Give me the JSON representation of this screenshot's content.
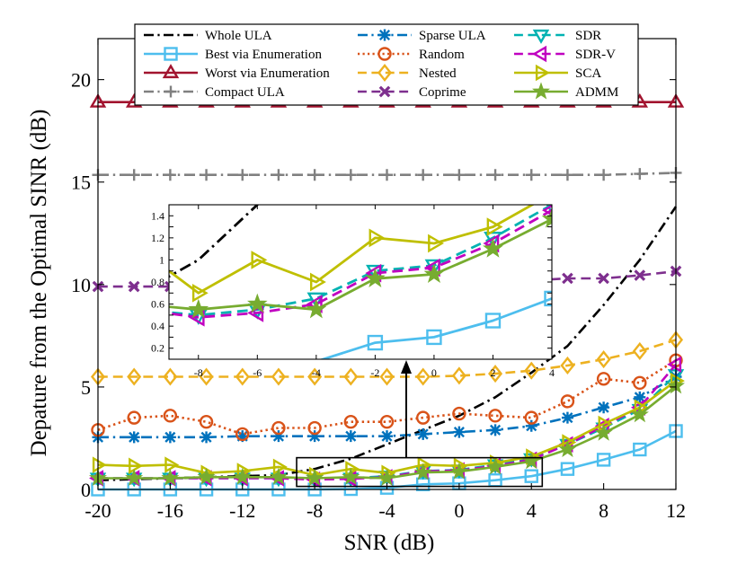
{
  "chart_data": {
    "type": "line",
    "xlabel": "SNR (dB)",
    "ylabel": "Depature from the Optimal SINR (dB)",
    "x": [
      -20,
      -18,
      -16,
      -14,
      -12,
      -10,
      -8,
      -6,
      -4,
      -2,
      0,
      2,
      4,
      6,
      8,
      10,
      12
    ],
    "xlim": [
      -20,
      12
    ],
    "ylim": [
      0,
      22
    ],
    "xticks": [
      -20,
      -16,
      -12,
      -8,
      -4,
      0,
      4,
      8,
      12
    ],
    "yticks": [
      0,
      5,
      10,
      15,
      20
    ],
    "grid": false,
    "legend_position": "top",
    "series": [
      {
        "name": "Whole ULA",
        "color": "#000000",
        "dash": "dashdot",
        "marker": "none",
        "values": [
          0.45,
          0.5,
          0.55,
          0.6,
          0.65,
          0.7,
          1.0,
          1.5,
          2.2,
          2.9,
          3.6,
          4.5,
          5.7,
          7.0,
          9.0,
          11.2,
          13.8
        ]
      },
      {
        "name": "Best via Enumeration",
        "color": "#4DBEEE",
        "dash": "solid",
        "marker": "square",
        "values": [
          0.0,
          0.0,
          0.0,
          0.0,
          0.0,
          0.0,
          0.0,
          0.02,
          0.08,
          0.25,
          0.3,
          0.45,
          0.65,
          1.0,
          1.45,
          1.95,
          2.85
        ]
      },
      {
        "name": "Worst via Enumeration",
        "color": "#A2142F",
        "dash": "solid",
        "marker": "triangle-up",
        "values": [
          18.9,
          18.9,
          18.9,
          18.9,
          18.9,
          18.9,
          18.9,
          18.9,
          18.9,
          18.9,
          18.9,
          18.9,
          18.9,
          18.9,
          18.9,
          18.9,
          18.9
        ]
      },
      {
        "name": "Compact ULA",
        "color": "#808080",
        "dash": "dashdot",
        "marker": "plus",
        "values": [
          15.35,
          15.35,
          15.35,
          15.35,
          15.35,
          15.35,
          15.35,
          15.35,
          15.35,
          15.35,
          15.35,
          15.35,
          15.35,
          15.35,
          15.35,
          15.4,
          15.45
        ]
      },
      {
        "name": "Sparse ULA",
        "color": "#0072BD",
        "dash": "dashdot",
        "marker": "asterisk",
        "values": [
          2.55,
          2.55,
          2.55,
          2.55,
          2.6,
          2.6,
          2.6,
          2.6,
          2.6,
          2.7,
          2.8,
          2.9,
          3.1,
          3.5,
          4.0,
          4.5,
          5.5
        ]
      },
      {
        "name": "Random",
        "color": "#D95319",
        "dash": "dotted",
        "marker": "circle",
        "values": [
          2.9,
          3.5,
          3.6,
          3.3,
          2.7,
          3.0,
          3.0,
          3.3,
          3.3,
          3.5,
          3.7,
          3.6,
          3.5,
          4.3,
          5.4,
          5.2,
          6.3
        ]
      },
      {
        "name": "Nested",
        "color": "#EDB120",
        "dash": "dashed",
        "marker": "diamond",
        "values": [
          5.5,
          5.5,
          5.5,
          5.5,
          5.5,
          5.5,
          5.5,
          5.5,
          5.5,
          5.5,
          5.55,
          5.65,
          5.8,
          6.05,
          6.35,
          6.75,
          7.3
        ]
      },
      {
        "name": "Coprime",
        "color": "#7E2F8E",
        "dash": "dashed",
        "marker": "x",
        "values": [
          9.9,
          9.9,
          9.9,
          9.95,
          9.95,
          9.95,
          10.0,
          10.0,
          10.0,
          10.05,
          10.05,
          10.1,
          10.2,
          10.3,
          10.3,
          10.45,
          10.65
        ]
      },
      {
        "name": "SDR",
        "color": "#00B2B2",
        "dash": "dashed",
        "marker": "triangle-down",
        "values": [
          0.55,
          0.55,
          0.55,
          0.55,
          0.55,
          0.55,
          0.5,
          0.55,
          0.65,
          0.9,
          0.95,
          1.2,
          1.5,
          2.2,
          3.0,
          3.9,
          5.6
        ]
      },
      {
        "name": "SDR-V",
        "color": "#C000C0",
        "dash": "dashed",
        "marker": "triangle-left",
        "values": [
          0.55,
          0.55,
          0.55,
          0.55,
          0.55,
          0.55,
          0.48,
          0.52,
          0.6,
          0.88,
          0.93,
          1.15,
          1.45,
          2.2,
          3.1,
          4.0,
          6.1
        ]
      },
      {
        "name": "SCA",
        "color": "#BFBF00",
        "dash": "solid",
        "marker": "triangle-right",
        "values": [
          1.2,
          1.15,
          1.2,
          0.8,
          0.9,
          1.1,
          0.7,
          1.0,
          0.8,
          1.2,
          1.15,
          1.3,
          1.6,
          2.3,
          3.2,
          4.0,
          5.3
        ]
      },
      {
        "name": "ADMM",
        "color": "#77AC30",
        "dash": "solid",
        "marker": "pentagram",
        "values": [
          0.55,
          0.55,
          0.55,
          0.6,
          0.6,
          0.6,
          0.55,
          0.6,
          0.55,
          0.83,
          0.87,
          1.1,
          1.37,
          1.95,
          2.75,
          3.65,
          5.05
        ]
      }
    ],
    "zoom_box": {
      "xlim": [
        -9,
        4.6
      ],
      "ylim": [
        0.15,
        1.55
      ]
    },
    "inset": {
      "xlim": [
        -9,
        4
      ],
      "ylim": [
        0.1,
        1.5
      ],
      "xticks": [
        -8,
        -6,
        -4,
        -2,
        0,
        2,
        4
      ],
      "yticks": [
        0.2,
        0.3,
        0.4,
        0.5,
        0.6,
        0.7,
        0.8,
        0.9,
        1,
        1.1,
        1.2,
        1.3,
        1.4
      ],
      "ytick_labels": [
        "0.2",
        "0.4",
        "0.6",
        "0.8",
        "1",
        "1.2",
        "1.4"
      ]
    }
  }
}
